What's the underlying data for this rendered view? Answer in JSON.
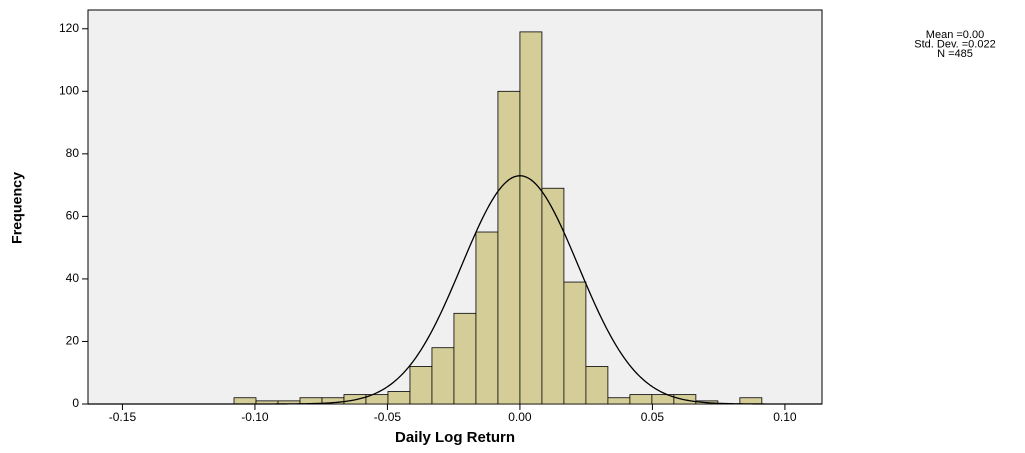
{
  "chart_data": {
    "type": "histogram",
    "xlabel": "Daily Log Return",
    "ylabel": "Frequency",
    "bins": [
      -0.1079,
      -0.0996,
      -0.0913,
      -0.083,
      -0.0747,
      -0.0664,
      -0.0581,
      -0.0498,
      -0.0415,
      -0.0332,
      -0.0249,
      -0.0166,
      -0.0083,
      0,
      0.0083,
      0.0166,
      0.0249,
      0.0332,
      0.0415,
      0.0498,
      0.0581,
      0.0664,
      0.0747,
      0.083,
      0.0913
    ],
    "values": [
      2,
      1,
      1,
      2,
      2,
      3,
      3,
      4,
      12,
      18,
      29,
      55,
      100,
      119,
      69,
      39,
      12,
      2,
      3,
      3,
      3,
      1,
      0,
      2
    ],
    "color": "#d4cd98",
    "background": "#f0f0f0",
    "xlim": [
      -0.163,
      0.114
    ],
    "ylim": [
      0,
      126
    ],
    "xticks": [
      -0.15,
      {
        "value": -0.1,
        "label": "-0.10"
      },
      -0.05,
      {
        "value": 0,
        "label": "0.00"
      },
      0.05,
      {
        "value": 0.1,
        "label": "0.10"
      }
    ],
    "yticks": [
      0,
      20,
      40,
      60,
      80,
      100,
      120
    ],
    "stats": [
      {
        "label": "Mean =0.00",
        "value": 0
      },
      {
        "label": "Std. Dev. =0.022",
        "value": 0.022
      },
      {
        "label": "N =485",
        "value": 485
      }
    ]
  }
}
